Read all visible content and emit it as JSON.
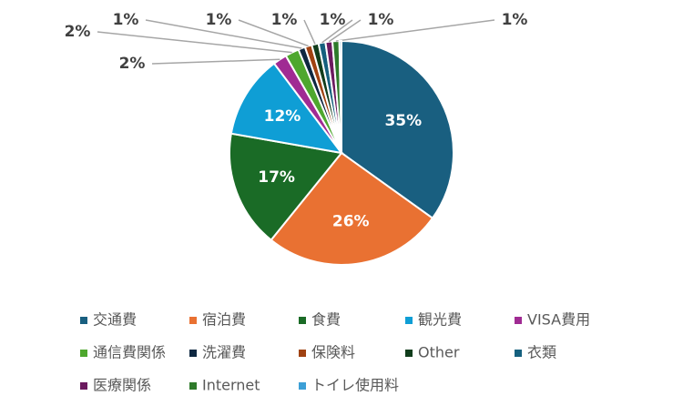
{
  "chart_data": {
    "type": "pie",
    "categories": [
      "交通費",
      "宿泊費",
      "食費",
      "観光費",
      "VISA費用",
      "通信費関係",
      "洗濯費",
      "保険料",
      "Other",
      "衣類",
      "医療関係",
      "Internet",
      "トイレ使用料"
    ],
    "values": [
      35,
      26,
      17,
      12,
      2,
      2,
      1,
      1,
      1,
      1,
      1,
      1,
      0.3
    ],
    "value_labels": [
      "35%",
      "26%",
      "17%",
      "12%",
      "2%",
      "2%",
      "1%",
      "1%",
      "1%",
      "1%",
      "1%",
      "1%",
      null
    ],
    "colors": [
      "#195f80",
      "#e97132",
      "#1a6b26",
      "#0f9ed5",
      "#a02b93",
      "#4ea72e",
      "#0e2841",
      "#a04212",
      "#113d1c",
      "#15607e",
      "#6b1a5f",
      "#2e7a2a",
      "#3c9fd6"
    ],
    "legend": "bottom"
  }
}
